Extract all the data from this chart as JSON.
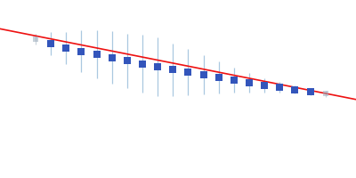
{
  "x_values": [
    0.05,
    0.08,
    0.11,
    0.14,
    0.17,
    0.2,
    0.23,
    0.26,
    0.29,
    0.32,
    0.35,
    0.38,
    0.41,
    0.44,
    0.47,
    0.5,
    0.53,
    0.56,
    0.59,
    0.62
  ],
  "y_values": [
    3.85,
    3.76,
    3.68,
    3.62,
    3.56,
    3.5,
    3.44,
    3.38,
    3.32,
    3.27,
    3.22,
    3.17,
    3.12,
    3.07,
    3.02,
    2.97,
    2.93,
    2.89,
    2.85,
    2.81
  ],
  "y_errors_lo": [
    0.1,
    0.22,
    0.3,
    0.4,
    0.46,
    0.5,
    0.52,
    0.55,
    0.56,
    0.5,
    0.44,
    0.38,
    0.3,
    0.24,
    0.18,
    0.14,
    0.1,
    0.08,
    0.07,
    0.06
  ],
  "y_errors_hi": [
    0.1,
    0.22,
    0.3,
    0.4,
    0.46,
    0.5,
    0.52,
    0.55,
    0.56,
    0.5,
    0.44,
    0.38,
    0.3,
    0.24,
    0.18,
    0.14,
    0.1,
    0.08,
    0.07,
    0.06
  ],
  "fit_x": [
    -0.02,
    0.68
  ],
  "fit_y": [
    4.05,
    2.7
  ],
  "point_color_main": "#3355bb",
  "point_color_grey": "#99aabb",
  "error_bar_color": "#aac8e0",
  "fit_line_color": "#ee1111",
  "background_color": "#ffffff",
  "xlim": [
    -0.02,
    0.68
  ],
  "ylim": [
    1.2,
    4.6
  ],
  "figsize": [
    4.0,
    2.0
  ],
  "dpi": 100,
  "grey_indices": [
    0,
    19
  ]
}
